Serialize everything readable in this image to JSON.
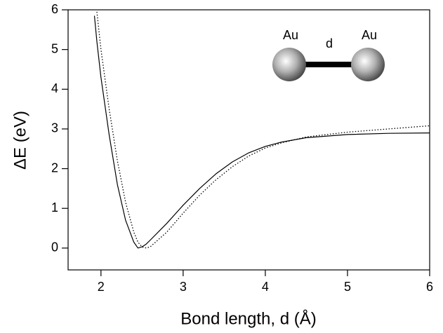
{
  "chart_data": {
    "type": "line",
    "xlabel": "Bond length, d  (Å)",
    "ylabel": "ΔE  (eV)",
    "x": [
      1.92,
      1.95,
      2.0,
      2.1,
      2.2,
      2.3,
      2.4,
      2.45,
      2.5,
      2.55,
      2.6,
      2.8,
      3.0,
      3.2,
      3.4,
      3.6,
      3.8,
      4.0,
      4.2,
      4.5,
      5.0,
      5.5,
      6.0
    ],
    "series": [
      {
        "color": "#000000",
        "dash": "solid",
        "values": [
          5.85,
          5.2,
          4.3,
          2.85,
          1.6,
          0.7,
          0.15,
          0.0,
          0.03,
          0.1,
          0.2,
          0.62,
          1.08,
          1.5,
          1.87,
          2.17,
          2.4,
          2.56,
          2.67,
          2.78,
          2.86,
          2.89,
          2.9
        ]
      },
      {
        "color": "#000000",
        "dash": "dotted",
        "values": [
          null,
          5.95,
          5.0,
          3.5,
          2.2,
          1.15,
          0.4,
          0.15,
          0.03,
          0.0,
          0.03,
          0.4,
          0.88,
          1.33,
          1.72,
          2.05,
          2.32,
          2.52,
          2.65,
          2.8,
          2.92,
          3.0,
          3.08
        ]
      }
    ],
    "xlim": [
      1.6,
      6
    ],
    "ylim": [
      -0.55,
      6
    ],
    "xticks": [
      2,
      3,
      4,
      5,
      6
    ],
    "yticks": [
      0,
      1,
      2,
      3,
      4,
      5,
      6
    ],
    "annotations": [
      "Au",
      "d",
      "Au"
    ]
  }
}
